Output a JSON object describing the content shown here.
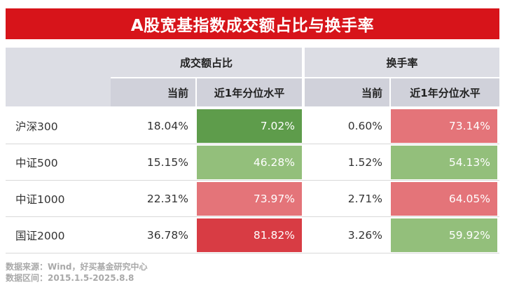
{
  "title": "A股宽基指数成交额占比与换手率",
  "chart_data": {
    "type": "table",
    "title": "A股宽基指数成交额占比与换手率",
    "groups": [
      {
        "label": "成交额占比",
        "columns": [
          "当前",
          "近1年分位水平"
        ]
      },
      {
        "label": "换手率",
        "columns": [
          "当前",
          "近1年分位水平"
        ]
      }
    ],
    "rows": [
      {
        "name": "沪深300",
        "share_current": "18.04%",
        "share_pct": "7.02%",
        "turnover_current": "0.60%",
        "turnover_pct": "73.14%",
        "share_pct_value": 7.02,
        "turnover_pct_value": 73.14
      },
      {
        "name": "中证500",
        "share_current": "15.15%",
        "share_pct": "46.28%",
        "turnover_current": "1.52%",
        "turnover_pct": "54.13%",
        "share_pct_value": 46.28,
        "turnover_pct_value": 54.13
      },
      {
        "name": "中证1000",
        "share_current": "22.31%",
        "share_pct": "73.97%",
        "turnover_current": "2.71%",
        "turnover_pct": "64.05%",
        "share_pct_value": 73.97,
        "turnover_pct_value": 64.05
      },
      {
        "name": "国证2000",
        "share_current": "36.78%",
        "share_pct": "81.82%",
        "turnover_current": "3.26%",
        "turnover_pct": "59.92%",
        "share_pct_value": 81.82,
        "turnover_pct_value": 59.92
      }
    ],
    "colors": {
      "dark_green": "#5e9c4b",
      "light_green": "#93bf7b",
      "light_red": "#e47479",
      "dark_red": "#d83c44",
      "title_bg": "#d7141a"
    }
  },
  "footer": {
    "source": "数据来源：Wind，好买基金研究中心",
    "period": "数据区间：2015.1.5-2025.8.8"
  }
}
